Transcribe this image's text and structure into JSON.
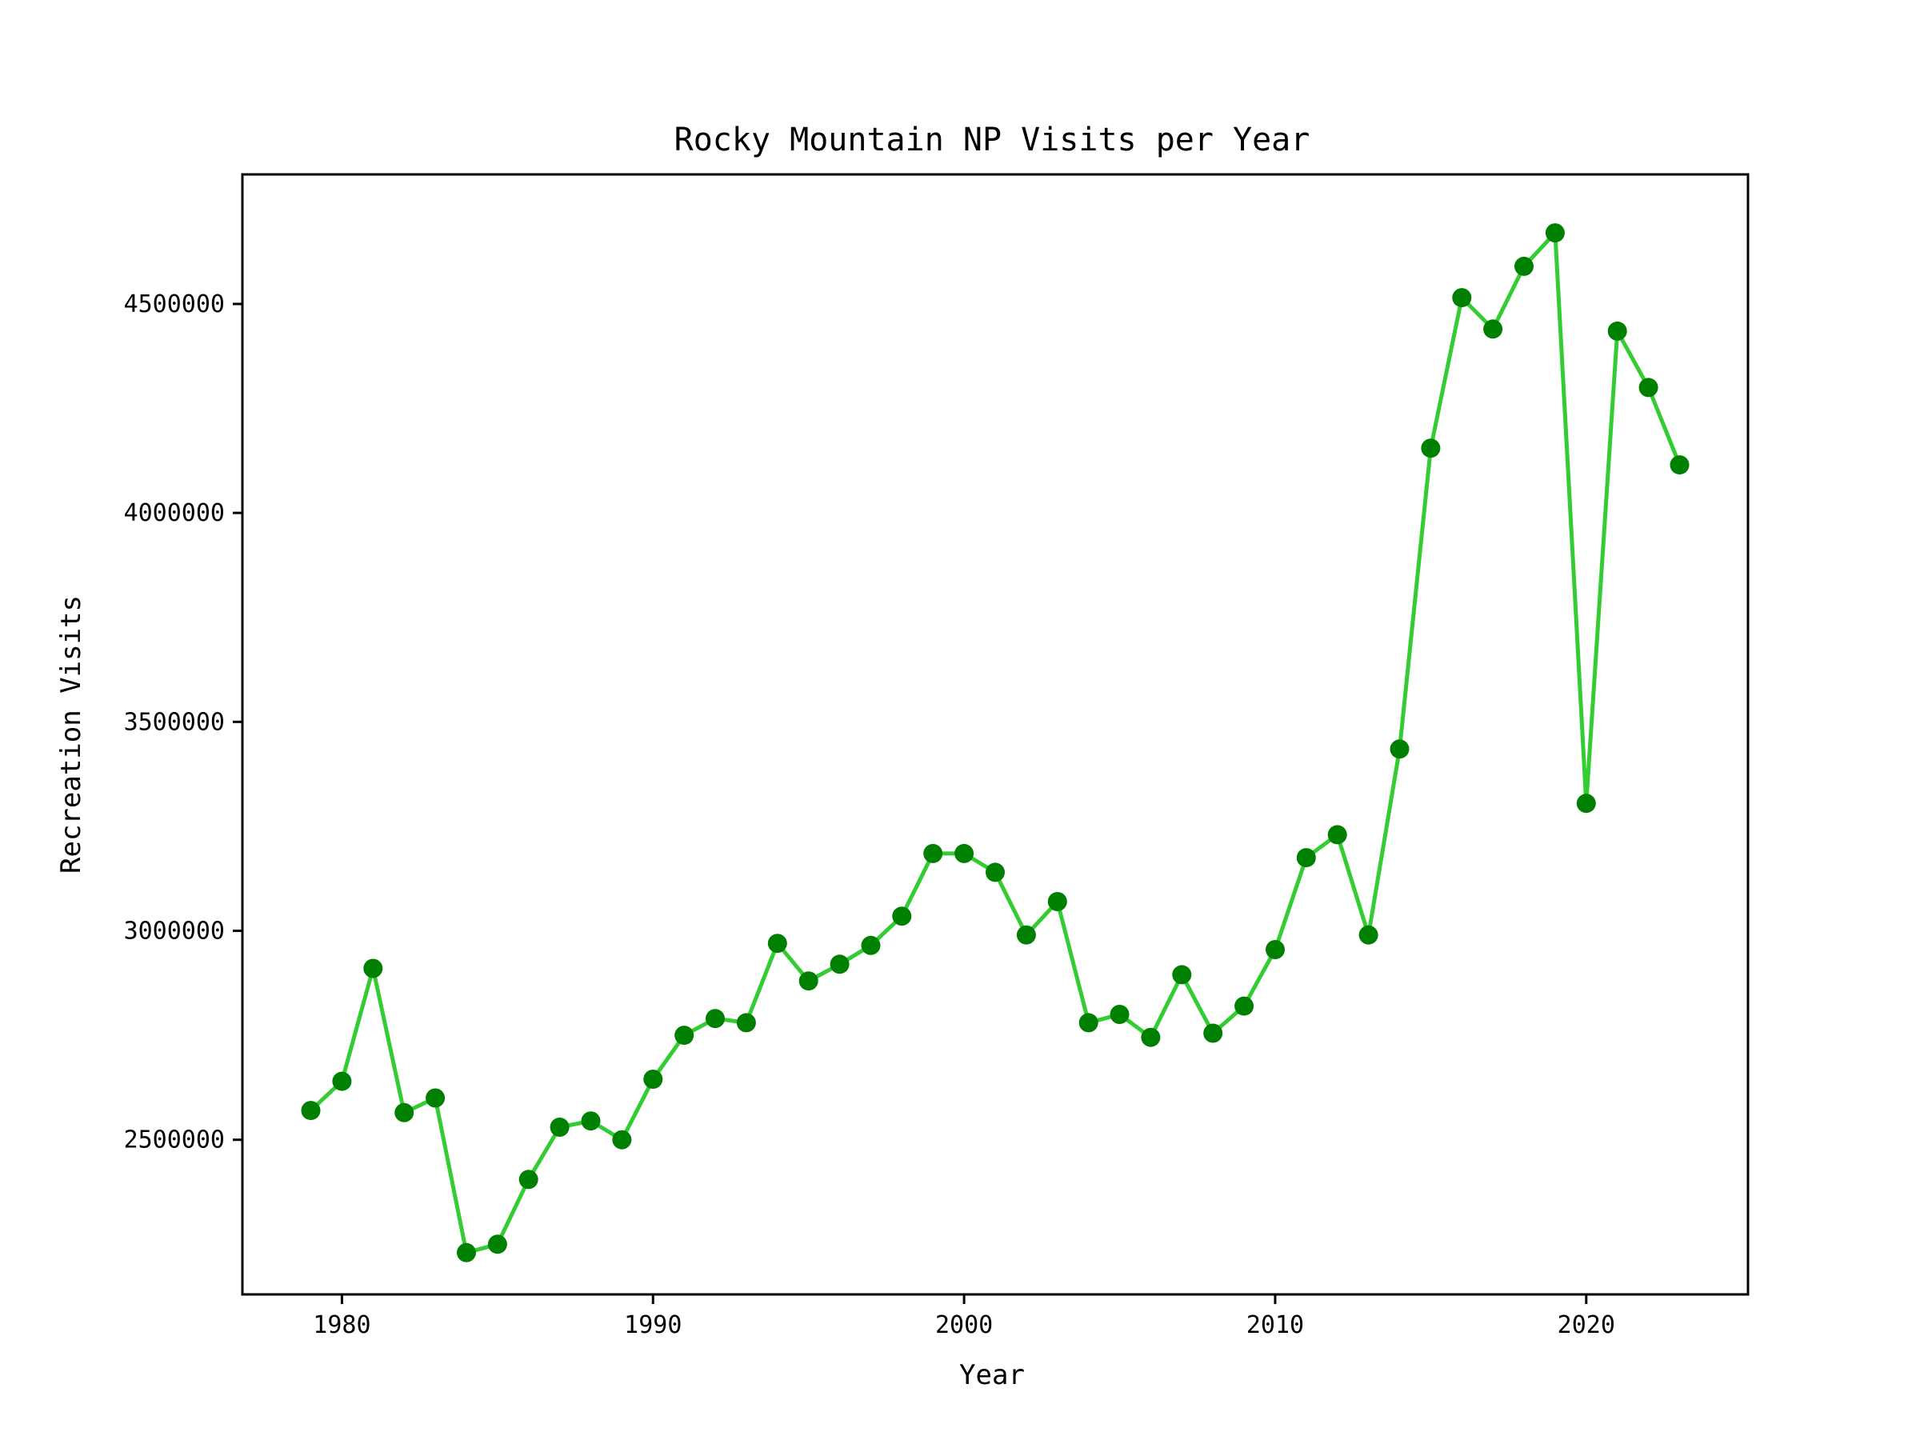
{
  "chart_data": {
    "type": "line",
    "title": "Rocky Mountain NP Visits per Year",
    "xlabel": "Year",
    "ylabel": "Recreation Visits",
    "xlim": [
      1976.8,
      2025.2
    ],
    "ylim": [
      2130000,
      4810000
    ],
    "xticks": [
      1980,
      1990,
      2000,
      2010,
      2020
    ],
    "yticks": [
      2500000,
      3000000,
      3500000,
      4000000,
      4500000
    ],
    "grid": false,
    "line_color": "#33cc33",
    "marker_color": "#008000",
    "series": [
      {
        "x": [
          1979,
          1980,
          1981,
          1982,
          1983,
          1984,
          1985,
          1986,
          1987,
          1988,
          1989,
          1990,
          1991,
          1992,
          1993,
          1994,
          1995,
          1996,
          1997,
          1998,
          1999,
          2000,
          2001,
          2002,
          2003,
          2004,
          2005,
          2006,
          2007,
          2008,
          2009,
          2010,
          2011,
          2012,
          2013,
          2014,
          2015,
          2016,
          2017,
          2018,
          2019,
          2020,
          2021,
          2022,
          2023
        ],
        "values": [
          2570000,
          2640000,
          2910000,
          2565000,
          2600000,
          2230000,
          2250000,
          2405000,
          2530000,
          2545000,
          2500000,
          2645000,
          2750000,
          2790000,
          2780000,
          2970000,
          2880000,
          2920000,
          2965000,
          3035000,
          3185000,
          3185000,
          3140000,
          2990000,
          3070000,
          2780000,
          2800000,
          2745000,
          2895000,
          2755000,
          2820000,
          2955000,
          3175000,
          3230000,
          2990000,
          3435000,
          4155000,
          4515000,
          4440000,
          4590000,
          4670000,
          3305000,
          4435000,
          4300000,
          4115000
        ]
      }
    ]
  }
}
